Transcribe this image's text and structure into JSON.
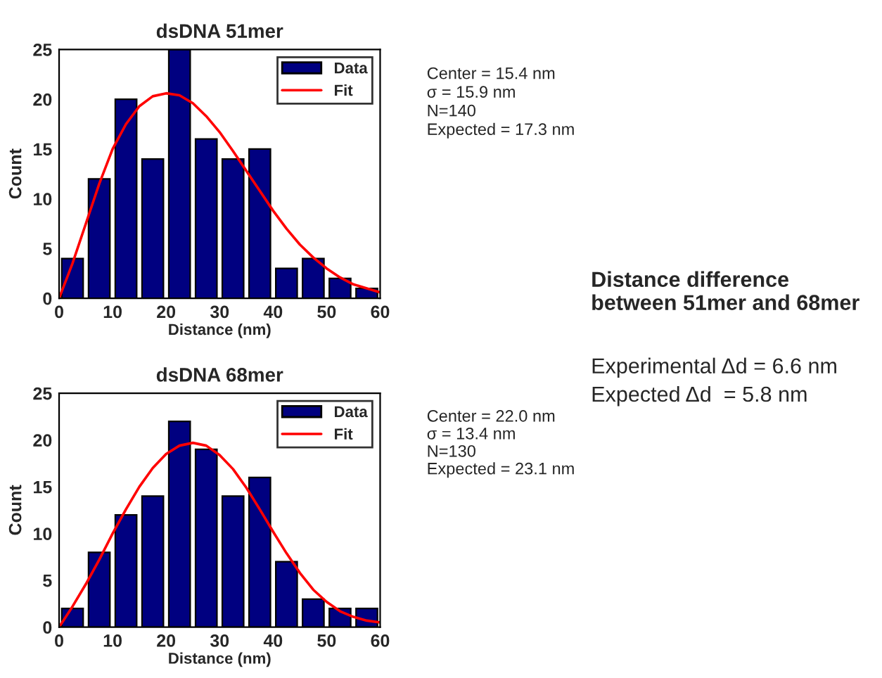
{
  "chart_data": [
    {
      "type": "histogram",
      "title": "dsDNA 51mer",
      "xlabel": "Distance (nm)",
      "ylabel": "Count",
      "bins": [
        0,
        5,
        10,
        15,
        20,
        25,
        30,
        35,
        40,
        45,
        50,
        55,
        60
      ],
      "series": [
        {
          "name": "Data",
          "type": "histogram",
          "color": "#000080",
          "values": [
            4,
            12,
            20,
            14,
            25,
            16,
            14,
            15,
            3,
            4,
            2,
            1
          ]
        },
        {
          "name": "Fit",
          "type": "line",
          "color": "#ff0000",
          "x": [
            0,
            2.5,
            5,
            7.5,
            10,
            12.5,
            15,
            17.5,
            20,
            22.5,
            25,
            27.5,
            30,
            32.5,
            35,
            37.5,
            40,
            42.5,
            45,
            47.5,
            50,
            52.5,
            55,
            57.5,
            60
          ],
          "values": [
            0,
            3.5,
            7.5,
            11.5,
            15,
            17.5,
            19.3,
            20.3,
            20.6,
            20.4,
            19.6,
            18.3,
            16.7,
            14.8,
            12.8,
            10.8,
            8.8,
            7,
            5.4,
            4.1,
            3,
            2.1,
            1.4,
            1,
            0.6
          ]
        }
      ],
      "xlim": [
        0,
        60
      ],
      "xticks": [
        0,
        10,
        20,
        30,
        40,
        50,
        60
      ],
      "ylim": [
        0,
        25
      ],
      "yticks": [
        0,
        5,
        10,
        15,
        20,
        25
      ],
      "legend": "top right",
      "annotations": [
        "Center = 15.4 nm",
        "σ = 15.9 nm",
        "N=140",
        "Expected = 17.3 nm"
      ]
    },
    {
      "type": "histogram",
      "title": "dsDNA 68mer",
      "xlabel": "Distance (nm)",
      "ylabel": "Count",
      "bins": [
        0,
        5,
        10,
        15,
        20,
        25,
        30,
        35,
        40,
        45,
        50,
        55,
        60
      ],
      "series": [
        {
          "name": "Data",
          "type": "histogram",
          "color": "#000080",
          "values": [
            2,
            8,
            12,
            14,
            22,
            19,
            14,
            16,
            7,
            3,
            2,
            2
          ]
        },
        {
          "name": "Fit",
          "type": "line",
          "color": "#ff0000",
          "x": [
            0,
            2.5,
            5,
            7.5,
            10,
            12.5,
            15,
            17.5,
            20,
            22.5,
            25,
            27.5,
            30,
            32.5,
            35,
            37.5,
            40,
            42.5,
            45,
            47.5,
            50,
            52.5,
            55,
            57.5,
            60
          ],
          "values": [
            0,
            2.2,
            4.6,
            7.2,
            10,
            12.6,
            15,
            17,
            18.5,
            19.4,
            19.7,
            19.4,
            18.4,
            16.9,
            14.9,
            12.6,
            10.2,
            7.9,
            5.8,
            4,
            2.7,
            1.7,
            1.1,
            0.7,
            0.5
          ]
        }
      ],
      "xlim": [
        0,
        60
      ],
      "xticks": [
        0,
        10,
        20,
        30,
        40,
        50,
        60
      ],
      "ylim": [
        0,
        25
      ],
      "yticks": [
        0,
        5,
        10,
        15,
        20,
        25
      ],
      "legend": "top right",
      "annotations": [
        "Center = 22.0 nm",
        "σ = 13.4 nm",
        "N=130",
        "Expected = 23.1 nm"
      ]
    },
    {
      "type": "other",
      "title": "Distance difference\nbetween 51mer and 68mer",
      "annotations": [
        "Experimental Δd = 6.6 nm",
        "Expected Δd  = 5.8 nm"
      ]
    }
  ]
}
